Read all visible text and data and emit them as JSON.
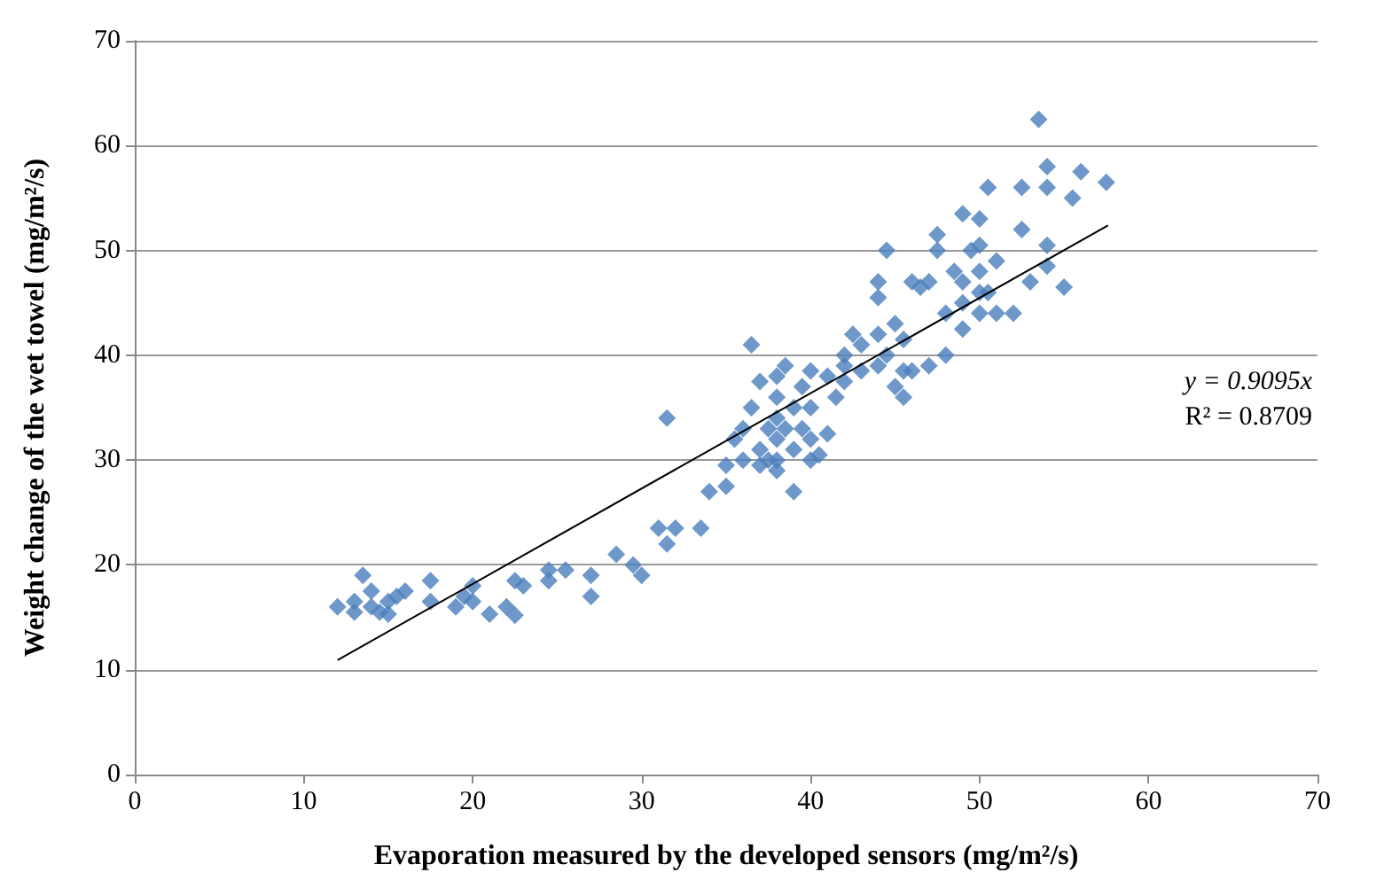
{
  "chart_data": {
    "type": "scatter",
    "xlabel": "Evaporation measured by the developed sensors (mg/m²/s)",
    "ylabel": "Weight change of the wet towel (mg/m²/s)",
    "xlim": [
      0,
      70
    ],
    "xticks": [
      0,
      10,
      20,
      30,
      40,
      50,
      60,
      70
    ],
    "ylim": [
      0,
      70
    ],
    "yticks": [
      0,
      10,
      20,
      30,
      40,
      50,
      60,
      70
    ],
    "grid": "y",
    "marker": "diamond",
    "annotations": [
      "y = 0.9095x",
      "R² = 0.8709"
    ],
    "series": [
      {
        "color": "#4a7ebb",
        "x": [
          12,
          13,
          13,
          13.5,
          14,
          14,
          14.5,
          15,
          15,
          15.5,
          16,
          17.5,
          17.5,
          19,
          19.5,
          20,
          20,
          21,
          22,
          22.5,
          22.5,
          23,
          24.5,
          24.5,
          25.5,
          27,
          27,
          28.5,
          29.5,
          30,
          31,
          31.5,
          31.5,
          32,
          33.5,
          34,
          35,
          35,
          35.5,
          36,
          36,
          36.5,
          36.5,
          37,
          37,
          37,
          37.5,
          37.5,
          38,
          38,
          38,
          38,
          38,
          38,
          38.5,
          38.5,
          39,
          39,
          39,
          39.5,
          39.5,
          40,
          40,
          40,
          40,
          40.5,
          41,
          41,
          41.5,
          42,
          42,
          42.5,
          42,
          43,
          43,
          44,
          44,
          44,
          44,
          44.5,
          44.5,
          45,
          45,
          45.5,
          45.5,
          45.5,
          46,
          46,
          46.5,
          47,
          47,
          47.5,
          47.5,
          48,
          48,
          48.5,
          49,
          49,
          49,
          49,
          49.5,
          50,
          50,
          50,
          50,
          50,
          50.5,
          50.5,
          51,
          51,
          52,
          52.5,
          52.5,
          53,
          53.5,
          54,
          54,
          54,
          54,
          55,
          55.5,
          56,
          57.5
        ],
        "values": [
          16,
          15.5,
          16.5,
          19,
          17.5,
          16,
          15.5,
          16.5,
          15.3,
          17,
          17.5,
          18.5,
          16.5,
          16,
          17,
          18,
          16.5,
          15.3,
          16,
          15.2,
          18.5,
          18,
          18.5,
          19.5,
          19.5,
          17,
          19,
          21,
          20,
          19,
          23.5,
          22,
          34,
          23.5,
          23.5,
          27,
          27.5,
          29.5,
          32,
          33,
          30,
          41,
          35,
          37.5,
          31,
          29.5,
          33,
          30,
          38,
          36,
          34,
          32,
          30,
          29,
          39,
          33,
          35,
          31,
          27,
          37,
          33,
          38.5,
          35,
          32,
          30,
          30.5,
          38,
          32.5,
          36,
          39,
          37.5,
          42,
          40,
          41,
          38.5,
          47,
          45.5,
          42,
          39,
          50,
          40,
          43,
          37,
          41.5,
          38.5,
          36,
          38.5,
          47,
          46.5,
          39,
          47,
          51.5,
          50,
          44,
          40,
          48,
          47,
          45,
          42.5,
          53.5,
          50,
          53,
          48,
          46,
          44,
          50.5,
          56,
          46,
          49,
          44,
          44,
          56,
          52,
          47,
          62.5,
          58,
          56,
          50.5,
          48.5,
          46.5,
          55,
          57.5,
          56.5
        ]
      },
      {
        "type": "line",
        "color": "#000000",
        "x": [
          12,
          57.6
        ],
        "values": [
          10.914,
          52.387
        ],
        "marker": "none"
      }
    ]
  }
}
